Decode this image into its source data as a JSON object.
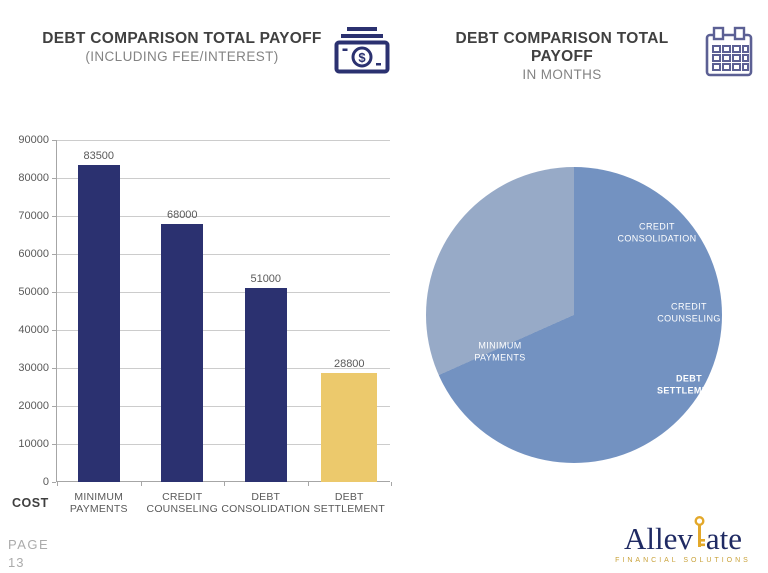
{
  "left_chart": {
    "title": "DEBT COMPARISON TOTAL PAYOFF",
    "subtitle": "(INCLUDING FEE/INTEREST)",
    "icon": "money-icon"
  },
  "right_chart": {
    "title": "DEBT COMPARISON TOTAL PAYOFF",
    "subtitle": "IN MONTHS",
    "icon": "calendar-icon"
  },
  "footer": {
    "page_label": "PAGE",
    "page_number": "13"
  },
  "logo": {
    "brand_pre": "Allev",
    "brand_post": "ate",
    "tagline": "FINANCIAL SOLUTIONS"
  },
  "colors": {
    "bar_navy": "#2b3170",
    "bar_highlight_yellow": "#ecc96c",
    "pie_main_blue": "#7392c1",
    "pie_light_blue": "#97aac7",
    "title_gray": "#404040",
    "axis_gray": "#595959",
    "logo_navy": "#1f2a63",
    "logo_gold": "#e3a82a"
  },
  "chart_data": [
    {
      "type": "bar",
      "title": "DEBT COMPARISON TOTAL PAYOFF (INCLUDING FEE/INTEREST)",
      "xlabel": "COST",
      "ylabel": "",
      "categories": [
        "MINIMUM\nPAYMENTS",
        "CREDIT\nCOUNSELING",
        "DEBT\nCONSOLIDATION",
        "DEBT\nSETTLEMENT"
      ],
      "values": [
        83500,
        68000,
        51000,
        28800
      ],
      "bar_colors": [
        "#2b3170",
        "#2b3170",
        "#2b3170",
        "#ecc96c"
      ],
      "bar_widths": [
        42,
        42,
        42,
        56
      ],
      "ylim": [
        0,
        90000
      ],
      "ytick_step": 10000,
      "grid": true,
      "value_labels_shown": true
    },
    {
      "type": "pie",
      "title": "DEBT COMPARISON TOTAL PAYOFF IN MONTHS",
      "units": "months",
      "numeric_values_labeled": false,
      "visible_wedges": [
        {
          "labels": [
            "CREDIT CONSOLIDATION",
            "CREDIT COUNSELING",
            "DEBT SETTLEMENT"
          ],
          "note": "three slices share one color; boundaries not visible",
          "color": "#7392c1",
          "start_deg": 0,
          "end_deg": 246,
          "share_pct_approx": 68.3
        },
        {
          "labels": [
            "MINIMUM PAYMENTS"
          ],
          "color": "#97aac7",
          "start_deg": 246,
          "end_deg": 360,
          "share_pct_approx": 31.7
        }
      ],
      "slice_labels": [
        {
          "text": "CREDIT\nCONSOLIDATION",
          "x": 231,
          "y": 66,
          "bold": false
        },
        {
          "text": "CREDIT\nCOUNSELING",
          "x": 263,
          "y": 146,
          "bold": false
        },
        {
          "text": "DEBT\nSETTLEMENT",
          "x": 263,
          "y": 218,
          "bold": true
        },
        {
          "text": "MINIMUM\nPAYMENTS",
          "x": 74,
          "y": 185,
          "bold": false
        }
      ]
    }
  ]
}
